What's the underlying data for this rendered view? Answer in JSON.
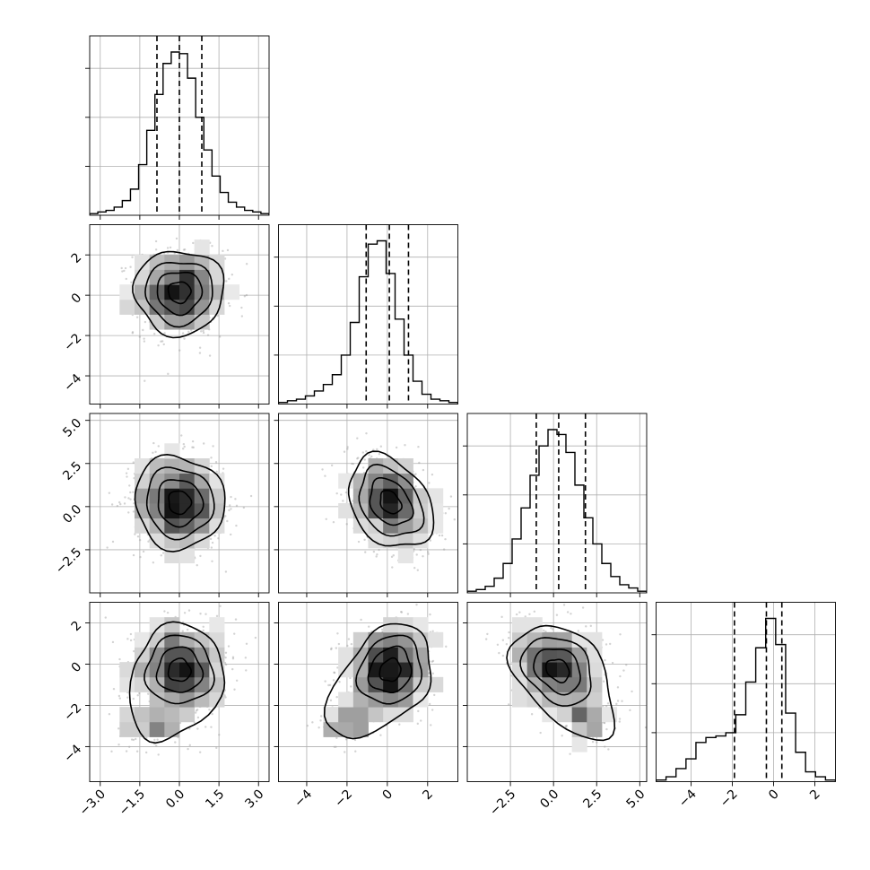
{
  "chart_data": {
    "type": "corner",
    "n_params": 4,
    "colors": {
      "line": "#000000",
      "grid": "#b0b0b0",
      "points": "#9e9e9e",
      "density": "#000000"
    },
    "grid": true,
    "params": [
      {
        "range": [
          -3.4,
          3.4
        ],
        "ticks": [
          -3.0,
          -1.5,
          0.0,
          1.5,
          3.0
        ],
        "tick_labels": [
          "−3.0",
          "−1.5",
          "0.0",
          "1.5",
          "3.0"
        ],
        "mean": 0.0,
        "sd": 0.85,
        "quantiles": [
          -0.85,
          0.0,
          0.85
        ]
      },
      {
        "range": [
          -5.4,
          3.5
        ],
        "ticks": [
          -4,
          -2,
          0,
          2
        ],
        "tick_labels": [
          "−4",
          "−2",
          "0",
          "2"
        ],
        "mean": 0.15,
        "sd": 1.05,
        "quantiles": [
          -1.05,
          0.1,
          1.05
        ]
      },
      {
        "range": [
          -5.0,
          5.4
        ],
        "ticks": [
          -2.5,
          0.0,
          2.5,
          5.0
        ],
        "tick_labels": [
          "−2.5",
          "0.0",
          "2.5",
          "5.0"
        ],
        "mean": 0.25,
        "sd": 1.35,
        "quantiles": [
          -1.0,
          0.3,
          1.85
        ]
      },
      {
        "range": [
          -5.7,
          3.0
        ],
        "ticks": [
          -4,
          -2,
          0,
          2
        ],
        "tick_labels": [
          "−4",
          "−2",
          "0",
          "2"
        ],
        "mean": -0.3,
        "sd": 1.1,
        "quantiles": [
          -1.9,
          -0.35,
          0.4
        ]
      }
    ],
    "histograms": [
      {
        "param": 0,
        "bin_edges_range": [
          -3.4,
          3.4
        ],
        "counts": [
          1,
          2,
          3,
          5,
          9,
          16,
          31,
          52,
          74,
          93,
          100,
          99,
          84,
          60,
          40,
          24,
          14,
          8,
          5,
          3,
          2,
          1
        ]
      },
      {
        "param": 1,
        "bin_edges_range": [
          -5.4,
          3.5
        ],
        "counts": [
          1,
          2,
          3,
          5,
          8,
          12,
          18,
          30,
          50,
          78,
          98,
          100,
          80,
          52,
          30,
          14,
          6,
          3,
          2,
          1
        ]
      },
      {
        "param": 2,
        "bin_edges_range": [
          -5.0,
          5.4
        ],
        "counts": [
          1,
          2,
          4,
          9,
          18,
          33,
          52,
          72,
          90,
          100,
          97,
          86,
          66,
          46,
          30,
          18,
          10,
          5,
          3,
          1
        ]
      },
      {
        "param": 3,
        "bin_edges_range": [
          -5.7,
          3.0
        ],
        "counts": [
          1,
          3,
          8,
          14,
          24,
          27,
          28,
          30,
          41,
          61,
          82,
          100,
          84,
          42,
          18,
          6,
          3,
          1
        ]
      }
    ],
    "pairs": [
      {
        "x_param": 0,
        "y_param": 1,
        "center": [
          0.0,
          0.15
        ],
        "correlation": 0.0
      },
      {
        "x_param": 0,
        "y_param": 2,
        "center": [
          0.0,
          0.25
        ],
        "correlation": -0.05
      },
      {
        "x_param": 1,
        "y_param": 2,
        "center": [
          0.15,
          0.25
        ],
        "correlation": -0.3
      },
      {
        "x_param": 0,
        "y_param": 3,
        "center": [
          0.0,
          -0.3
        ],
        "correlation": 0.0,
        "tail_toward": [
          -0.9,
          -3.0
        ]
      },
      {
        "x_param": 1,
        "y_param": 3,
        "center": [
          0.15,
          -0.3
        ],
        "correlation": 0.15,
        "tail_toward": [
          -2.0,
          -2.8
        ]
      },
      {
        "x_param": 2,
        "y_param": 3,
        "center": [
          0.25,
          -0.3
        ],
        "correlation": -0.25,
        "tail_toward": [
          2.0,
          -2.7
        ]
      }
    ],
    "contour_levels": 4,
    "scatter_points_per_panel": 900
  }
}
